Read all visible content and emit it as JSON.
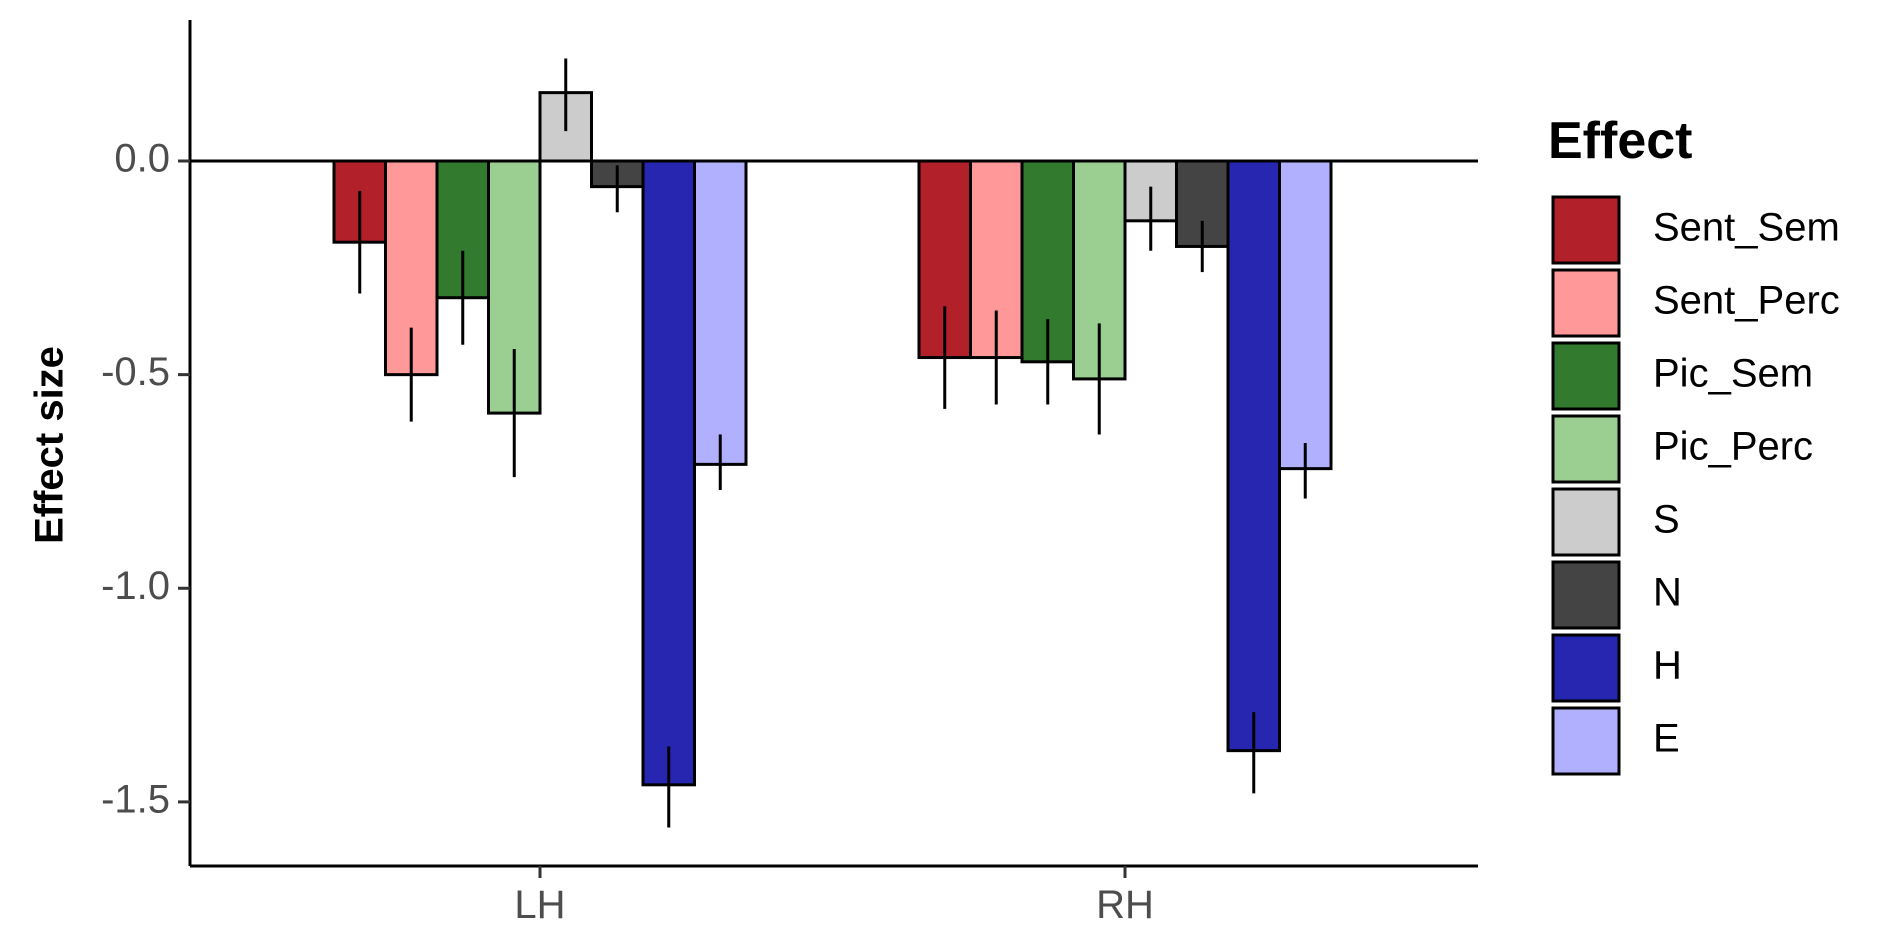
{
  "chart_data": {
    "type": "bar",
    "title": "",
    "xlabel": "",
    "ylabel": "Effect size",
    "categories": [
      "LH",
      "RH"
    ],
    "ylim": [
      -1.65,
      0.33
    ],
    "yticks": [
      0.0,
      -0.5,
      -1.0,
      -1.5
    ],
    "ytick_labels": [
      "0.0",
      "-0.5",
      "-1.0",
      "-1.5"
    ],
    "grid": false,
    "legend": {
      "title": "Effect",
      "position": "right"
    },
    "series": [
      {
        "name": "Sent_Sem",
        "color": "#B2202A",
        "values": [
          -0.19,
          -0.46
        ],
        "err_low": [
          -0.31,
          -0.58
        ],
        "err_high": [
          -0.07,
          -0.34
        ]
      },
      {
        "name": "Sent_Perc",
        "color": "#FF9999",
        "values": [
          -0.5,
          -0.46
        ],
        "err_low": [
          -0.61,
          -0.57
        ],
        "err_high": [
          -0.39,
          -0.35
        ]
      },
      {
        "name": "Pic_Sem",
        "color": "#317A2E",
        "values": [
          -0.32,
          -0.47
        ],
        "err_low": [
          -0.43,
          -0.57
        ],
        "err_high": [
          -0.21,
          -0.37
        ]
      },
      {
        "name": "Pic_Perc",
        "color": "#9BCF92",
        "values": [
          -0.59,
          -0.51
        ],
        "err_low": [
          -0.74,
          -0.64
        ],
        "err_high": [
          -0.44,
          -0.38
        ]
      },
      {
        "name": "S",
        "color": "#CCCCCC",
        "values": [
          0.16,
          -0.14
        ],
        "err_low": [
          0.07,
          -0.21
        ],
        "err_high": [
          0.24,
          -0.06
        ]
      },
      {
        "name": "N",
        "color": "#444444",
        "values": [
          -0.06,
          -0.2
        ],
        "err_low": [
          -0.12,
          -0.26
        ],
        "err_high": [
          -0.01,
          -0.14
        ]
      },
      {
        "name": "H",
        "color": "#2626B0",
        "values": [
          -1.46,
          -1.38
        ],
        "err_low": [
          -1.56,
          -1.48
        ],
        "err_high": [
          -1.37,
          -1.29
        ]
      },
      {
        "name": "E",
        "color": "#B1B0FF",
        "values": [
          -0.71,
          -0.72
        ],
        "err_low": [
          -0.77,
          -0.79
        ],
        "err_high": [
          -0.64,
          -0.66
        ]
      }
    ]
  }
}
